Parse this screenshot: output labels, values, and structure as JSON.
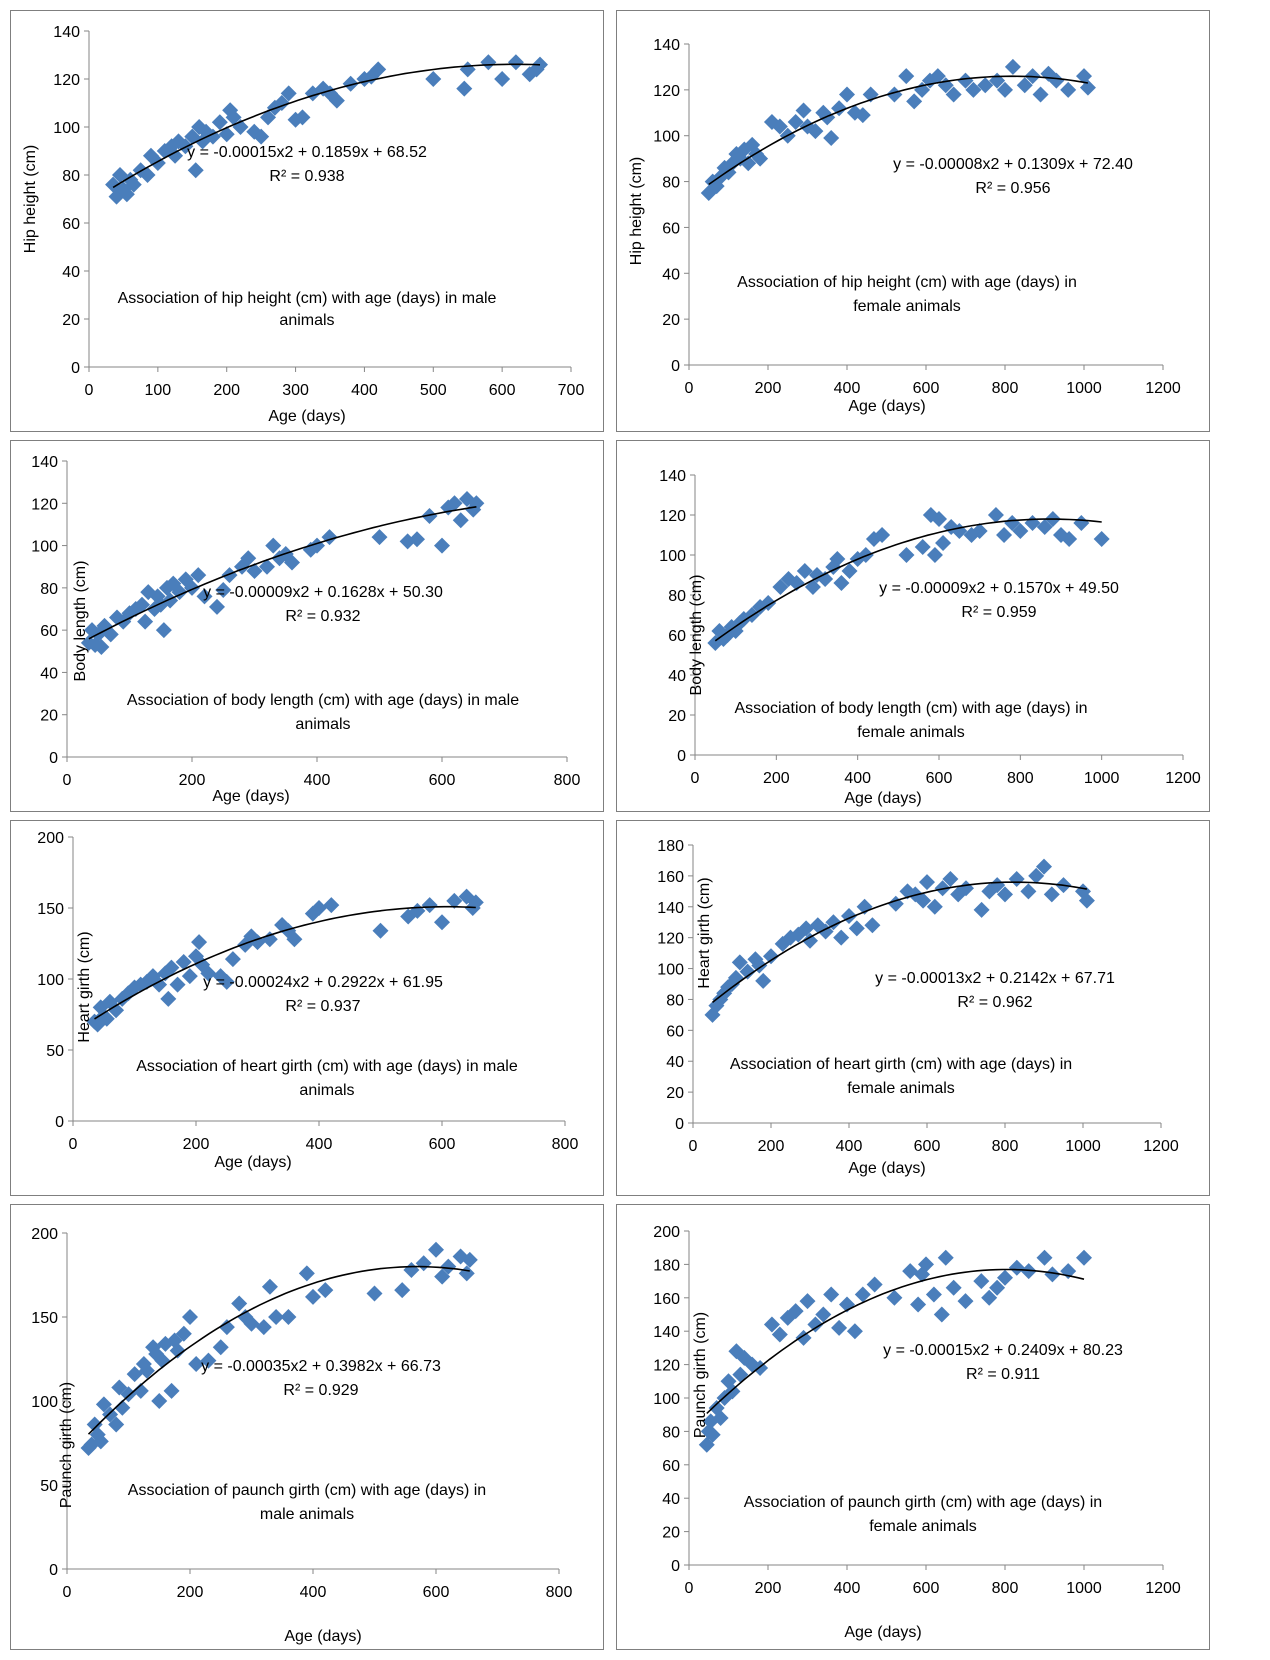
{
  "figure_colors": {
    "marker": "#4a7ebb",
    "trendline": "#000000",
    "axis": "#868686"
  },
  "chart_data": [
    {
      "type": "scatter",
      "title": "Association of hip height (cm) with age (days) in male animals",
      "title_lines": [
        "Association of hip height (cm) with age (days) in male",
        "animals"
      ],
      "xlabel": "Age (days)",
      "ylabel": "Hip height (cm)",
      "xlim": [
        0,
        700
      ],
      "ylim": [
        0,
        140
      ],
      "xticks": [
        0,
        100,
        200,
        300,
        400,
        500,
        600,
        700
      ],
      "yticks": [
        0,
        20,
        40,
        60,
        80,
        100,
        120,
        140
      ],
      "grid": false,
      "legend": "none",
      "equation": "y = -0.00015x2 + 0.1859x + 68.52",
      "r_squared": "R² = 0.938",
      "trend_coefficients": [
        -0.00015,
        0.1859,
        68.52
      ],
      "x": [
        35,
        40,
        45,
        50,
        55,
        60,
        65,
        75,
        85,
        90,
        100,
        110,
        120,
        125,
        130,
        140,
        150,
        155,
        160,
        165,
        170,
        180,
        190,
        200,
        205,
        210,
        220,
        240,
        250,
        260,
        270,
        280,
        290,
        300,
        310,
        325,
        340,
        350,
        360,
        380,
        400,
        410,
        420,
        500,
        545,
        550,
        580,
        600,
        620,
        640,
        650,
        655
      ],
      "y": [
        76,
        71,
        80,
        74,
        72,
        78,
        76,
        82,
        80,
        88,
        85,
        90,
        92,
        88,
        94,
        92,
        96,
        82,
        100,
        94,
        98,
        96,
        102,
        97,
        107,
        104,
        100,
        98,
        96,
        104,
        108,
        110,
        114,
        103,
        104,
        114,
        116,
        114,
        111,
        118,
        120,
        121,
        124,
        120,
        116,
        124,
        127,
        120,
        127,
        122,
        124,
        126
      ]
    },
    {
      "type": "scatter",
      "title": "Association of hip height (cm) with age (days) in female animals",
      "title_lines": [
        "Association of hip height (cm) with age (days) in",
        "female animals"
      ],
      "xlabel": "Age (days)",
      "ylabel": "Hip height (cm)",
      "xlim": [
        0,
        1200
      ],
      "ylim": [
        0,
        140
      ],
      "xticks": [
        0,
        200,
        400,
        600,
        800,
        1000,
        1200
      ],
      "yticks": [
        0,
        20,
        40,
        60,
        80,
        100,
        120,
        140
      ],
      "grid": false,
      "legend": "none",
      "equation": "y = -0.00008x2 + 0.1309x + 72.40",
      "r_squared": "R² = 0.956",
      "trend_coefficients": [
        -8e-05,
        0.1309,
        72.4
      ],
      "x": [
        50,
        60,
        70,
        80,
        90,
        100,
        110,
        120,
        130,
        140,
        150,
        160,
        170,
        180,
        210,
        230,
        250,
        270,
        290,
        300,
        320,
        340,
        350,
        360,
        380,
        400,
        420,
        440,
        460,
        520,
        550,
        570,
        590,
        610,
        630,
        650,
        670,
        700,
        720,
        750,
        780,
        800,
        820,
        850,
        870,
        890,
        910,
        930,
        960,
        1000,
        1010
      ],
      "y": [
        75,
        80,
        78,
        82,
        86,
        84,
        88,
        92,
        90,
        94,
        88,
        96,
        92,
        90,
        106,
        104,
        100,
        106,
        111,
        104,
        102,
        110,
        108,
        99,
        112,
        118,
        110,
        109,
        118,
        118,
        126,
        115,
        120,
        124,
        126,
        122,
        118,
        124,
        120,
        122,
        124,
        120,
        130,
        122,
        126,
        118,
        127,
        124,
        120,
        126,
        121
      ]
    },
    {
      "type": "scatter",
      "title": "Association of body length (cm) with age (days) in male animals",
      "title_lines": [
        "Association of body length (cm) with age (days) in male",
        "animals"
      ],
      "xlabel": "Age (days)",
      "ylabel": "Body length (cm)",
      "xlim": [
        0,
        800
      ],
      "ylim": [
        0,
        140
      ],
      "xticks": [
        0,
        200,
        400,
        600,
        800
      ],
      "yticks": [
        0,
        20,
        40,
        60,
        80,
        100,
        120,
        140
      ],
      "grid": false,
      "legend": "none",
      "equation": "y = -0.00009x2 + 0.1628x + 50.30",
      "r_squared": "R² = 0.932",
      "trend_coefficients": [
        -9e-05,
        0.1628,
        50.3
      ],
      "x": [
        35,
        40,
        45,
        50,
        55,
        60,
        70,
        80,
        90,
        100,
        110,
        120,
        125,
        130,
        140,
        145,
        150,
        155,
        160,
        165,
        170,
        180,
        190,
        200,
        210,
        220,
        240,
        250,
        260,
        280,
        290,
        300,
        320,
        330,
        340,
        350,
        360,
        390,
        400,
        420,
        500,
        545,
        560,
        580,
        600,
        610,
        620,
        630,
        640,
        650,
        655
      ],
      "y": [
        54,
        60,
        53,
        58,
        52,
        62,
        58,
        66,
        64,
        68,
        70,
        72,
        64,
        78,
        70,
        76,
        72,
        60,
        80,
        74,
        82,
        78,
        84,
        80,
        86,
        76,
        71,
        79,
        86,
        90,
        94,
        88,
        90,
        100,
        94,
        96,
        92,
        98,
        100,
        104,
        104,
        102,
        103,
        114,
        100,
        118,
        120,
        112,
        122,
        117,
        120
      ]
    },
    {
      "type": "scatter",
      "title": "Association of body length (cm) with age (days) in female animals",
      "title_lines": [
        "Association of body length (cm) with age (days) in",
        "female animals"
      ],
      "xlabel": "Age (days)",
      "ylabel": "Body length (cm)",
      "xlim": [
        0,
        1200
      ],
      "ylim": [
        0,
        140
      ],
      "xticks": [
        0,
        200,
        400,
        600,
        800,
        1000,
        1200
      ],
      "yticks": [
        0,
        20,
        40,
        60,
        80,
        100,
        120,
        140
      ],
      "grid": false,
      "legend": "none",
      "equation": "y = -0.00009x2 + 0.1570x + 49.50",
      "r_squared": "R² = 0.959",
      "trend_coefficients": [
        -9e-05,
        0.157,
        49.5
      ],
      "x": [
        50,
        60,
        70,
        80,
        90,
        100,
        110,
        120,
        140,
        160,
        180,
        210,
        230,
        250,
        270,
        290,
        300,
        320,
        340,
        350,
        360,
        380,
        400,
        420,
        440,
        460,
        520,
        560,
        580,
        590,
        600,
        610,
        630,
        650,
        680,
        700,
        740,
        760,
        780,
        800,
        830,
        860,
        880,
        900,
        920,
        950,
        1000
      ],
      "y": [
        56,
        62,
        58,
        60,
        64,
        62,
        66,
        68,
        70,
        74,
        76,
        84,
        88,
        86,
        92,
        84,
        90,
        88,
        94,
        98,
        86,
        92,
        98,
        100,
        108,
        110,
        100,
        104,
        120,
        100,
        118,
        106,
        114,
        112,
        110,
        112,
        120,
        110,
        116,
        112,
        116,
        114,
        118,
        110,
        108,
        116,
        108
      ]
    },
    {
      "type": "scatter",
      "title": "Association of heart girth (cm) with age (days) in male animals",
      "title_lines": [
        "Association of heart girth (cm) with age (days) in male",
        "animals"
      ],
      "xlabel": "Age (days)",
      "ylabel": "Heart girth (cm)",
      "xlim": [
        0,
        800
      ],
      "ylim": [
        0,
        200
      ],
      "xticks": [
        0,
        200,
        400,
        600,
        800
      ],
      "yticks": [
        0,
        50,
        100,
        150,
        200
      ],
      "grid": false,
      "legend": "none",
      "equation": "y = -0.00024x2 + 0.2922x + 61.95",
      "r_squared": "R² = 0.937",
      "trend_coefficients": [
        -0.00024,
        0.2922,
        61.95
      ],
      "x": [
        35,
        40,
        45,
        50,
        55,
        60,
        70,
        80,
        90,
        100,
        110,
        120,
        130,
        140,
        150,
        155,
        160,
        170,
        180,
        190,
        200,
        205,
        210,
        220,
        240,
        250,
        260,
        280,
        290,
        300,
        320,
        340,
        350,
        360,
        390,
        400,
        420,
        500,
        545,
        560,
        580,
        600,
        620,
        640,
        650,
        655
      ],
      "y": [
        70,
        68,
        80,
        74,
        72,
        84,
        78,
        86,
        90,
        94,
        96,
        98,
        102,
        96,
        104,
        86,
        108,
        96,
        112,
        102,
        116,
        126,
        110,
        104,
        102,
        98,
        114,
        124,
        130,
        126,
        128,
        138,
        134,
        128,
        146,
        150,
        152,
        134,
        144,
        148,
        152,
        140,
        155,
        158,
        150,
        154
      ]
    },
    {
      "type": "scatter",
      "title": "Association of heart girth (cm) with age (days) in female animals",
      "title_lines": [
        "Association of heart girth (cm) with age (days) in",
        "female animals"
      ],
      "xlabel": "Age (days)",
      "ylabel": "Heart girth (cm)",
      "xlim": [
        0,
        1200
      ],
      "ylim": [
        0,
        180
      ],
      "xticks": [
        0,
        200,
        400,
        600,
        800,
        1000,
        1200
      ],
      "yticks": [
        0,
        20,
        40,
        60,
        80,
        100,
        120,
        140,
        160,
        180
      ],
      "grid": false,
      "legend": "none",
      "equation": "y = -0.00013x2 + 0.2142x + 67.71",
      "r_squared": "R² = 0.962",
      "trend_coefficients": [
        -0.00013,
        0.2142,
        67.71
      ],
      "x": [
        50,
        60,
        70,
        80,
        90,
        100,
        110,
        120,
        140,
        160,
        170,
        180,
        200,
        230,
        250,
        270,
        290,
        300,
        320,
        340,
        360,
        380,
        400,
        420,
        440,
        460,
        520,
        550,
        570,
        590,
        600,
        620,
        640,
        660,
        680,
        700,
        740,
        760,
        780,
        800,
        830,
        860,
        880,
        900,
        920,
        950,
        1000,
        1010
      ],
      "y": [
        70,
        76,
        80,
        84,
        88,
        90,
        94,
        104,
        98,
        106,
        102,
        92,
        108,
        116,
        120,
        122,
        126,
        118,
        128,
        124,
        130,
        120,
        134,
        126,
        140,
        128,
        142,
        150,
        148,
        144,
        156,
        140,
        152,
        158,
        148,
        152,
        138,
        150,
        154,
        148,
        158,
        150,
        160,
        166,
        148,
        154,
        150,
        144
      ]
    },
    {
      "type": "scatter",
      "title": "Association of paunch girth (cm) with age (days) in male animals",
      "title_lines": [
        "Association of paunch girth (cm) with age (days) in",
        "male animals"
      ],
      "xlabel": "Age (days)",
      "ylabel": "Paunch girth (cm)",
      "xlim": [
        0,
        800
      ],
      "ylim": [
        0,
        200
      ],
      "xticks": [
        0,
        200,
        400,
        600,
        800
      ],
      "yticks": [
        0,
        50,
        100,
        150,
        200
      ],
      "grid": false,
      "legend": "none",
      "equation": "y = -0.00035x2 + 0.3982x + 66.73",
      "r_squared": "R² = 0.929",
      "trend_coefficients": [
        -0.00035,
        0.3982,
        66.73
      ],
      "x": [
        35,
        40,
        45,
        50,
        55,
        60,
        70,
        80,
        85,
        90,
        100,
        110,
        120,
        125,
        130,
        140,
        145,
        150,
        155,
        160,
        170,
        175,
        180,
        190,
        200,
        210,
        230,
        250,
        260,
        280,
        290,
        300,
        320,
        330,
        340,
        360,
        390,
        400,
        420,
        500,
        545,
        560,
        580,
        600,
        610,
        620,
        640,
        650,
        655
      ],
      "y": [
        72,
        74,
        86,
        80,
        76,
        98,
        92,
        86,
        108,
        96,
        104,
        116,
        106,
        122,
        118,
        132,
        128,
        100,
        124,
        134,
        106,
        136,
        130,
        140,
        150,
        122,
        124,
        132,
        144,
        158,
        150,
        146,
        144,
        168,
        150,
        150,
        176,
        162,
        166,
        164,
        166,
        178,
        182,
        190,
        174,
        180,
        186,
        176,
        184
      ]
    },
    {
      "type": "scatter",
      "title": "Association of paunch girth (cm) with age (days) in female animals",
      "title_lines": [
        "Association of paunch girth (cm) with age (days) in",
        "female animals"
      ],
      "xlabel": "Age (days)",
      "ylabel": "Paunch girth (cm)",
      "xlim": [
        0,
        1200
      ],
      "ylim": [
        0,
        200
      ],
      "xticks": [
        0,
        200,
        400,
        600,
        800,
        1000,
        1200
      ],
      "yticks": [
        0,
        20,
        40,
        60,
        80,
        100,
        120,
        140,
        160,
        180,
        200
      ],
      "grid": false,
      "legend": "none",
      "equation": "y = -0.00015x2 + 0.2409x + 80.23",
      "r_squared": "R² = 0.911",
      "trend_coefficients": [
        -0.00015,
        0.2409,
        80.23
      ],
      "x": [
        45,
        50,
        55,
        60,
        70,
        80,
        90,
        100,
        110,
        120,
        130,
        140,
        160,
        180,
        210,
        230,
        250,
        270,
        290,
        300,
        320,
        340,
        360,
        380,
        400,
        420,
        440,
        470,
        520,
        560,
        580,
        590,
        600,
        620,
        640,
        650,
        670,
        700,
        740,
        760,
        780,
        800,
        830,
        860,
        900,
        920,
        960,
        1000
      ],
      "y": [
        72,
        80,
        86,
        78,
        94,
        88,
        100,
        110,
        104,
        128,
        114,
        124,
        120,
        118,
        144,
        138,
        148,
        152,
        136,
        158,
        144,
        150,
        162,
        142,
        156,
        140,
        162,
        168,
        160,
        176,
        156,
        174,
        180,
        162,
        150,
        184,
        166,
        158,
        170,
        160,
        166,
        172,
        178,
        176,
        184,
        174,
        176,
        184
      ]
    }
  ]
}
